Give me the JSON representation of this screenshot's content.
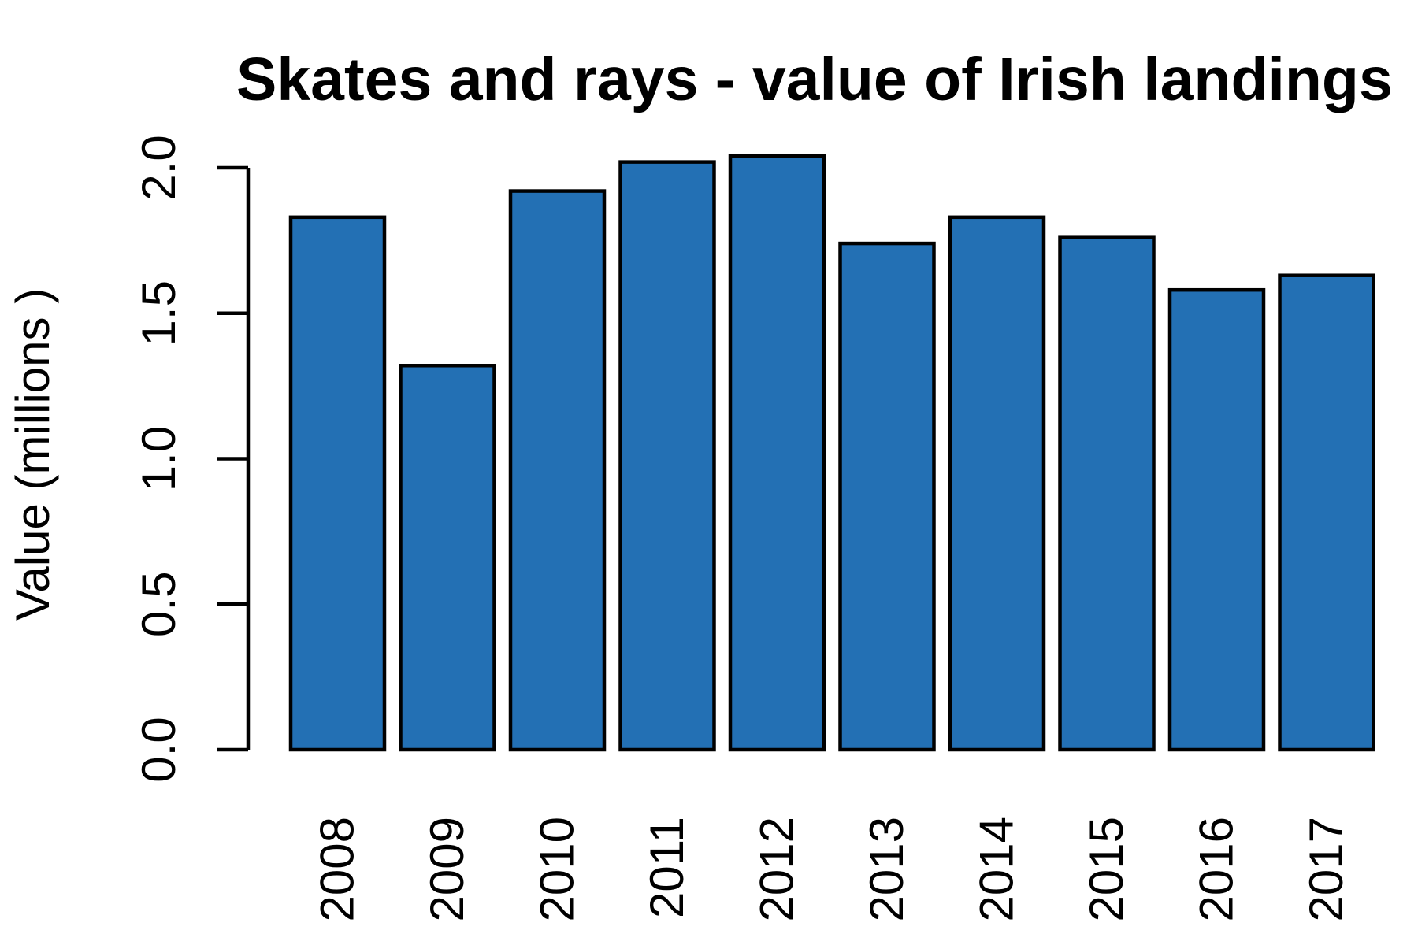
{
  "chart_data": {
    "type": "bar",
    "title": "Skates and rays - value of Irish landings",
    "xlabel": "",
    "ylabel": "Value (millions )",
    "categories": [
      "2008",
      "2009",
      "2010",
      "2011",
      "2012",
      "2013",
      "2014",
      "2015",
      "2016",
      "2017"
    ],
    "values": [
      1.83,
      1.32,
      1.92,
      2.02,
      2.04,
      1.74,
      1.83,
      1.76,
      1.58,
      1.63
    ],
    "ylim": [
      0,
      2.0
    ],
    "yticks": [
      "0.0",
      "0.5",
      "1.0",
      "1.5",
      "2.0"
    ],
    "bar_color": "#2370B4",
    "grid": false,
    "legend": "none"
  }
}
